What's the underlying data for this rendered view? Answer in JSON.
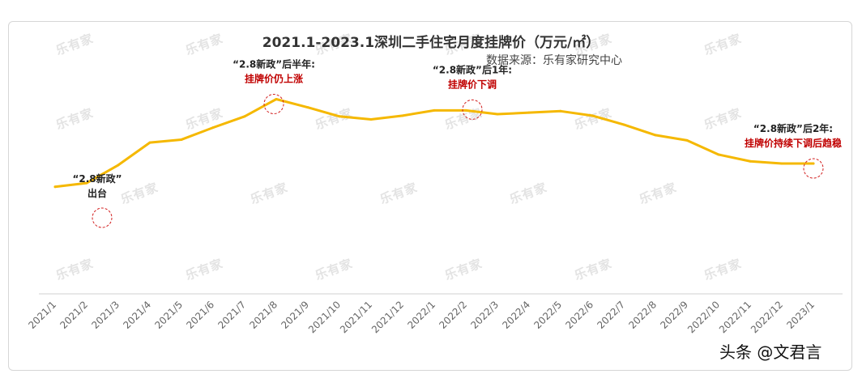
{
  "title": "2021.1-2023.1深圳二手住宅月度挂牌价（万元/㎡）",
  "source": "数据来源：乐有家研究中心",
  "watermark_text": "乐有家",
  "corner_logo": "头条 @文君言",
  "chart_data": {
    "type": "line",
    "title": "2021.1-2023.1深圳二手住宅月度挂牌价（万元/㎡）",
    "categories": [
      "2021/1",
      "2021/2",
      "2021/3",
      "2021/4",
      "2021/5",
      "2021/6",
      "2021/7",
      "2021/8",
      "2021/9",
      "2021/10",
      "2021/11",
      "2021/12",
      "2022/1",
      "2022/2",
      "2022/3",
      "2022/4",
      "2022/5",
      "2022/6",
      "2022/7",
      "2022/8",
      "2022/9",
      "2022/10",
      "2022/11",
      "2022/12",
      "2023/1"
    ],
    "series": [
      {
        "values": [
          7.15,
          7.4,
          8.6,
          10.1,
          10.3,
          11.1,
          11.85,
          13.0,
          12.45,
          11.85,
          11.65,
          11.9,
          12.25,
          12.25,
          12.0,
          12.1,
          12.2,
          11.9,
          11.3,
          10.6,
          10.25,
          9.3,
          8.85,
          8.7,
          8.7
        ],
        "color": "#f5b800"
      }
    ],
    "ylim": [
      0,
      18
    ],
    "grid": false,
    "annotations": [
      {
        "index": 2,
        "line1": "“2.8新政”",
        "line2": "出台"
      },
      {
        "index": 7,
        "line1": "“2.8新政”后半年:",
        "line2": "挂牌价仍上涨"
      },
      {
        "index": 13,
        "line1": "“2.8新政”后1年:",
        "line2": "挂牌价下调"
      },
      {
        "index": 24,
        "line1": "“2.8新政”后2年:",
        "line2": "挂牌价持续下调后趋稳"
      }
    ],
    "annotation_colors": {
      "line1": "#222222",
      "line2": "#c00000",
      "circle": "#d21f1f"
    }
  }
}
